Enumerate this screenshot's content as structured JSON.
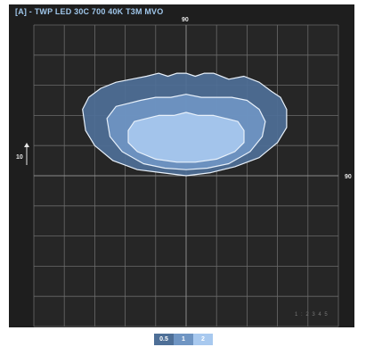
{
  "header": {
    "title": "[A] - TWP LED 30C 700 40K T3M MVO"
  },
  "axis_labels": {
    "top": "90",
    "right": "90",
    "left": "10"
  },
  "scale_marker": "1 : 2 3 4 5",
  "legend": {
    "items": [
      {
        "label": "0.5",
        "color": "#4e6f97"
      },
      {
        "label": "1",
        "color": "#6f95c3"
      },
      {
        "label": "2",
        "color": "#a8c9ef"
      }
    ]
  },
  "colors": {
    "background": "#1e1e1e",
    "plot_background": "#262626",
    "grid": "#6a6a6a",
    "outline": "#e8f1fb",
    "title": "#9fc6ea"
  },
  "chart_data": {
    "type": "area",
    "title": "[A] - TWP LED 30C 700 40K T3M MVO",
    "grid": true,
    "grid_divisions": 10,
    "xlim": [
      -5,
      5
    ],
    "ylim": [
      -5,
      5
    ],
    "contours": [
      {
        "level": "0.5",
        "color": "#4e6f97",
        "points": [
          [
            -3.4,
            2.2
          ],
          [
            -3.2,
            2.6
          ],
          [
            -2.8,
            2.9
          ],
          [
            -2.3,
            3.1
          ],
          [
            -1.8,
            3.2
          ],
          [
            -1.3,
            3.3
          ],
          [
            -0.9,
            3.4
          ],
          [
            -0.6,
            3.3
          ],
          [
            -0.3,
            3.4
          ],
          [
            0,
            3.4
          ],
          [
            0.3,
            3.3
          ],
          [
            0.6,
            3.4
          ],
          [
            0.9,
            3.4
          ],
          [
            1.4,
            3.2
          ],
          [
            1.9,
            3.3
          ],
          [
            2.4,
            3.1
          ],
          [
            2.8,
            2.8
          ],
          [
            3.1,
            2.6
          ],
          [
            3.3,
            2.2
          ],
          [
            3.3,
            1.6
          ],
          [
            3.0,
            1.1
          ],
          [
            2.4,
            0.6
          ],
          [
            1.6,
            0.3
          ],
          [
            0.8,
            0.1
          ],
          [
            0,
            0.0
          ],
          [
            -0.8,
            0.1
          ],
          [
            -1.6,
            0.2
          ],
          [
            -2.4,
            0.5
          ],
          [
            -3.0,
            1.0
          ],
          [
            -3.3,
            1.5
          ]
        ]
      },
      {
        "level": "1",
        "color": "#6f95c3",
        "points": [
          [
            -2.6,
            1.9
          ],
          [
            -2.3,
            2.3
          ],
          [
            -1.9,
            2.4
          ],
          [
            -1.5,
            2.5
          ],
          [
            -1.0,
            2.6
          ],
          [
            -0.5,
            2.6
          ],
          [
            0,
            2.7
          ],
          [
            0.5,
            2.6
          ],
          [
            1.0,
            2.6
          ],
          [
            1.5,
            2.6
          ],
          [
            2.0,
            2.5
          ],
          [
            2.4,
            2.2
          ],
          [
            2.6,
            1.8
          ],
          [
            2.5,
            1.3
          ],
          [
            2.1,
            0.8
          ],
          [
            1.4,
            0.4
          ],
          [
            0.7,
            0.25
          ],
          [
            0,
            0.2
          ],
          [
            -0.7,
            0.25
          ],
          [
            -1.4,
            0.4
          ],
          [
            -2.1,
            0.8
          ],
          [
            -2.5,
            1.3
          ]
        ]
      },
      {
        "level": "2",
        "color": "#a8c9ef",
        "points": [
          [
            -1.9,
            1.5
          ],
          [
            -1.7,
            1.8
          ],
          [
            -1.3,
            1.9
          ],
          [
            -0.9,
            2.0
          ],
          [
            -0.4,
            2.0
          ],
          [
            0,
            2.1
          ],
          [
            0.4,
            2.0
          ],
          [
            0.9,
            2.0
          ],
          [
            1.3,
            1.9
          ],
          [
            1.7,
            1.8
          ],
          [
            1.9,
            1.5
          ],
          [
            1.9,
            1.1
          ],
          [
            1.6,
            0.8
          ],
          [
            1.0,
            0.55
          ],
          [
            0.3,
            0.45
          ],
          [
            -0.3,
            0.45
          ],
          [
            -1.0,
            0.55
          ],
          [
            -1.6,
            0.8
          ],
          [
            -1.9,
            1.1
          ]
        ]
      }
    ]
  }
}
